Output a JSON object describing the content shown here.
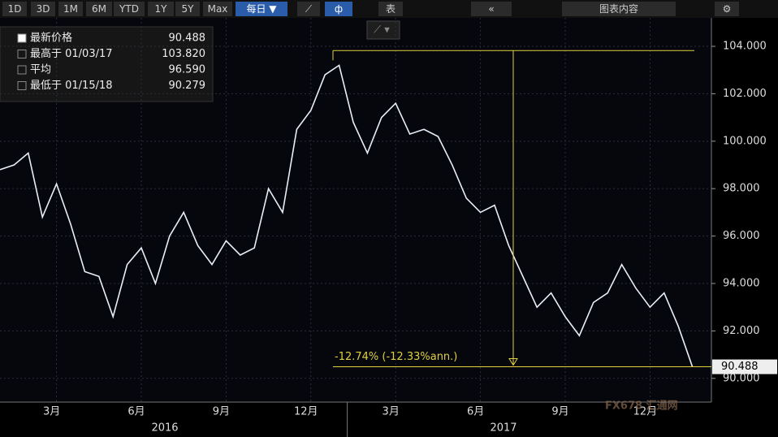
{
  "toolbar": {
    "buttons": [
      "1D",
      "3D",
      "1M",
      "6M",
      "YTD",
      "1Y",
      "5Y",
      "Max"
    ],
    "frequency": "每日 ▼",
    "table": "表",
    "panel": "图表内容"
  },
  "chart_data": {
    "type": "line",
    "categories": [
      null,
      null,
      null,
      null,
      "3月",
      null,
      null,
      null,
      null,
      null,
      "6月",
      null,
      null,
      null,
      null,
      null,
      "9月",
      null,
      null,
      null,
      null,
      null,
      "12月",
      null,
      null,
      null,
      null,
      null,
      "3月",
      null,
      null,
      null,
      null,
      null,
      "6月",
      null,
      null,
      null,
      null,
      null,
      "9月",
      null,
      null,
      null,
      null,
      null,
      "12月",
      null,
      null,
      null
    ],
    "year_labels": [
      "2016",
      "2017"
    ],
    "series": [
      {
        "name": "最新价格",
        "color": "#e8eef8",
        "values": [
          98.8,
          99.0,
          99.5,
          96.8,
          98.2,
          96.5,
          94.5,
          94.3,
          92.6,
          94.8,
          95.5,
          94.0,
          96.0,
          97.0,
          95.6,
          94.8,
          95.8,
          95.2,
          95.5,
          98.0,
          97.0,
          100.5,
          101.3,
          102.8,
          103.2,
          100.8,
          99.5,
          101.0,
          101.6,
          100.3,
          100.5,
          100.2,
          99.0,
          97.6,
          97.0,
          97.3,
          95.6,
          94.3,
          93.0,
          93.6,
          92.6,
          91.8,
          93.2,
          93.6,
          94.8,
          93.8,
          93.0,
          93.6,
          92.2,
          90.488
        ]
      }
    ],
    "ylim": [
      89.0,
      105.2
    ],
    "yticks": [
      {
        "value": 90,
        "label": "90.000"
      },
      {
        "value": 92,
        "label": "92.000"
      },
      {
        "value": 94,
        "label": "94.000"
      },
      {
        "value": 96,
        "label": "96.000"
      },
      {
        "value": 98,
        "label": "98.000"
      },
      {
        "value": 100,
        "label": "100.000"
      },
      {
        "value": 102,
        "label": "102.000"
      },
      {
        "value": 104,
        "label": "104.000"
      }
    ],
    "grid": true,
    "stats": [
      {
        "label": "最新价格",
        "value": 90.488
      },
      {
        "label": "最高于 01/03/17",
        "value": 103.82,
        "value_label": "103.820"
      },
      {
        "label": "平均",
        "value": 96.59,
        "value_label": "96.590"
      },
      {
        "label": "最低于 01/15/18",
        "value": 90.279
      }
    ],
    "annotation": "-12.74% (-12.33%ann.)",
    "last_price_label": "90.488",
    "watermark": "FX678 汇通网"
  }
}
